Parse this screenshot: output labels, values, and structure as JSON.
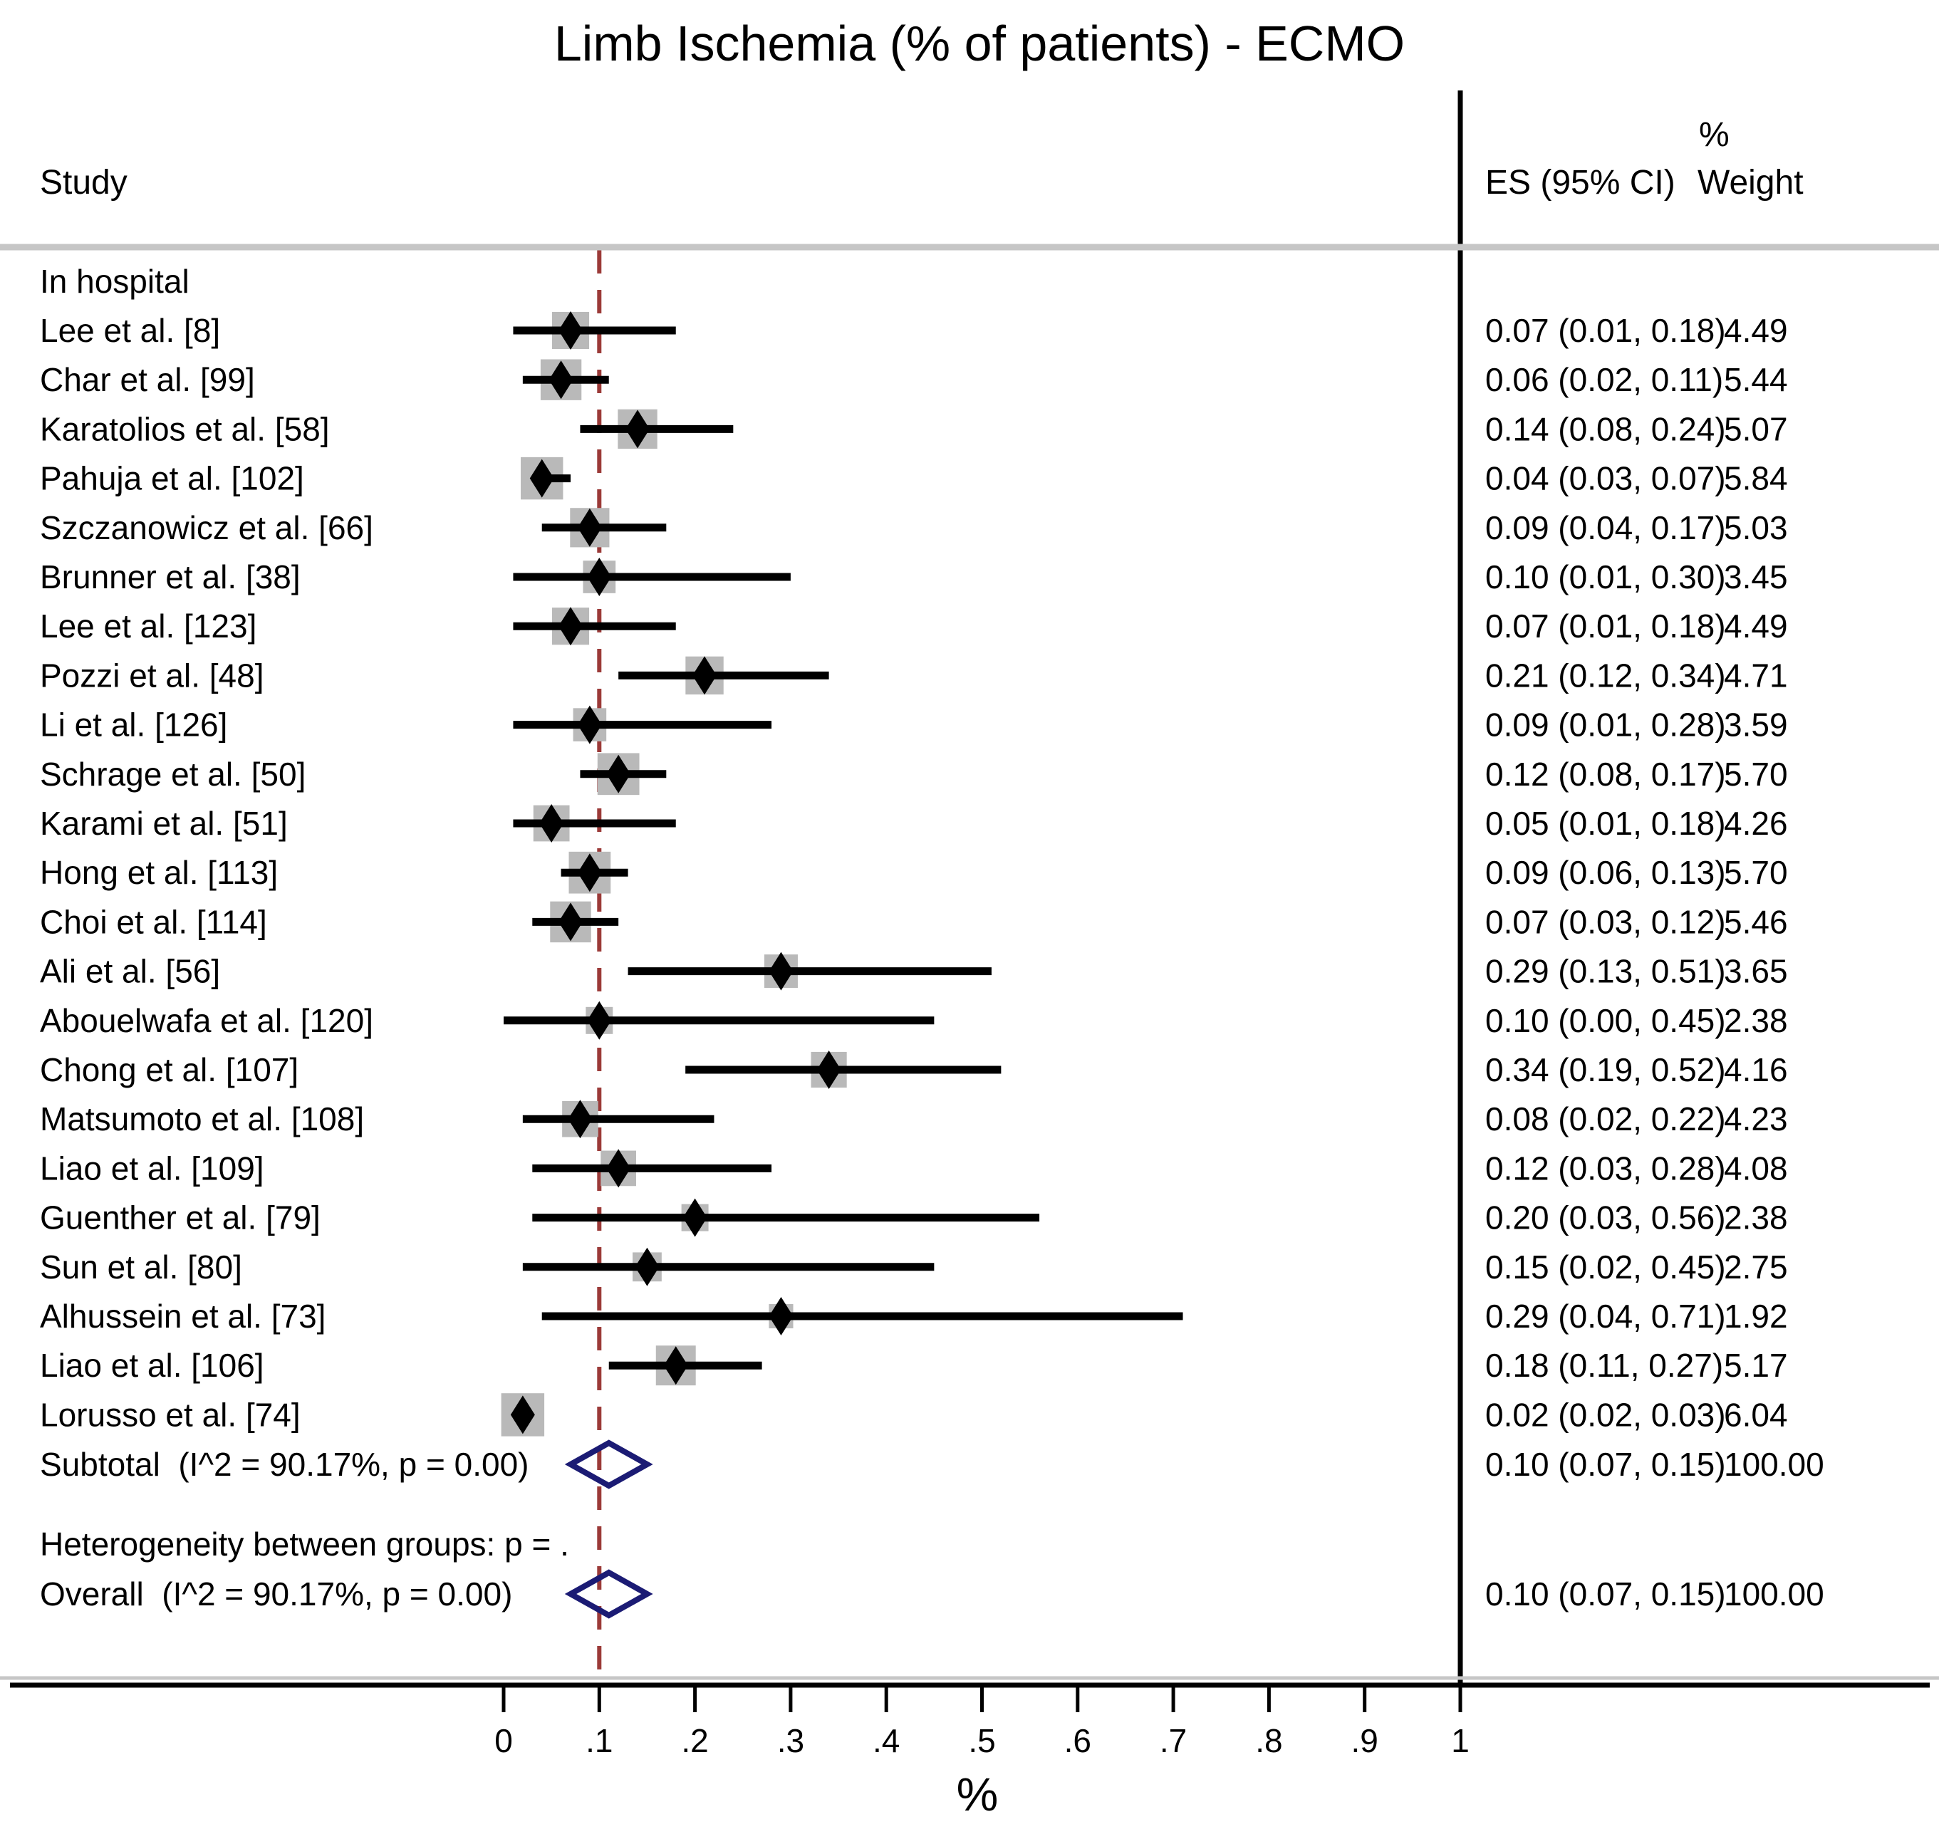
{
  "title": "Limb Ischemia (% of patients) - ECMO",
  "header": {
    "study": "Study",
    "es": "ES (95% CI)",
    "weight_top": "%",
    "weight": "Weight"
  },
  "axis": {
    "label": "%",
    "min": 0,
    "max": 1,
    "reference_value": 0.1,
    "ticks": [
      {
        "value": 0.0,
        "label": "0"
      },
      {
        "value": 0.1,
        "label": ".1"
      },
      {
        "value": 0.2,
        "label": ".2"
      },
      {
        "value": 0.3,
        "label": ".3"
      },
      {
        "value": 0.4,
        "label": ".4"
      },
      {
        "value": 0.5,
        "label": ".5"
      },
      {
        "value": 0.6,
        "label": ".6"
      },
      {
        "value": 0.7,
        "label": ".7"
      },
      {
        "value": 0.8,
        "label": ".8"
      },
      {
        "value": 0.9,
        "label": ".9"
      },
      {
        "value": 1.0,
        "label": "1"
      }
    ]
  },
  "colors": {
    "text": "#000000",
    "ci_line": "#000000",
    "point_marker": "#000000",
    "weight_square": "#b9b9b9",
    "summary_diamond": "#1b1b74",
    "reference_line": "#9b3a38",
    "separator": "#c6c6c6",
    "axis_line": "#000000"
  },
  "chart_data": {
    "type": "forest",
    "group_label": "In hospital",
    "studies": [
      {
        "label": "Lee et al. [8]",
        "es": 0.07,
        "ci_low": 0.01,
        "ci_high": 0.18,
        "weight": 4.49,
        "es_text": "0.07 (0.01, 0.18)",
        "weight_text": "4.49"
      },
      {
        "label": "Char et al. [99]",
        "es": 0.06,
        "ci_low": 0.02,
        "ci_high": 0.11,
        "weight": 5.44,
        "es_text": "0.06 (0.02, 0.11)",
        "weight_text": "5.44"
      },
      {
        "label": "Karatolios et al. [58]",
        "es": 0.14,
        "ci_low": 0.08,
        "ci_high": 0.24,
        "weight": 5.07,
        "es_text": "0.14 (0.08, 0.24)",
        "weight_text": "5.07"
      },
      {
        "label": "Pahuja et al. [102]",
        "es": 0.04,
        "ci_low": 0.03,
        "ci_high": 0.07,
        "weight": 5.84,
        "es_text": "0.04 (0.03, 0.07)",
        "weight_text": "5.84"
      },
      {
        "label": "Szczanowicz et al. [66]",
        "es": 0.09,
        "ci_low": 0.04,
        "ci_high": 0.17,
        "weight": 5.03,
        "es_text": "0.09 (0.04, 0.17)",
        "weight_text": "5.03"
      },
      {
        "label": "Brunner et al. [38]",
        "es": 0.1,
        "ci_low": 0.01,
        "ci_high": 0.3,
        "weight": 3.45,
        "es_text": "0.10 (0.01, 0.30)",
        "weight_text": "3.45"
      },
      {
        "label": "Lee et al. [123]",
        "es": 0.07,
        "ci_low": 0.01,
        "ci_high": 0.18,
        "weight": 4.49,
        "es_text": "0.07 (0.01, 0.18)",
        "weight_text": "4.49"
      },
      {
        "label": "Pozzi et al. [48]",
        "es": 0.21,
        "ci_low": 0.12,
        "ci_high": 0.34,
        "weight": 4.71,
        "es_text": "0.21 (0.12, 0.34)",
        "weight_text": "4.71"
      },
      {
        "label": "Li et al. [126]",
        "es": 0.09,
        "ci_low": 0.01,
        "ci_high": 0.28,
        "weight": 3.59,
        "es_text": "0.09 (0.01, 0.28)",
        "weight_text": "3.59"
      },
      {
        "label": "Schrage et al. [50]",
        "es": 0.12,
        "ci_low": 0.08,
        "ci_high": 0.17,
        "weight": 5.7,
        "es_text": "0.12 (0.08, 0.17)",
        "weight_text": "5.70"
      },
      {
        "label": "Karami et al. [51]",
        "es": 0.05,
        "ci_low": 0.01,
        "ci_high": 0.18,
        "weight": 4.26,
        "es_text": "0.05 (0.01, 0.18)",
        "weight_text": "4.26"
      },
      {
        "label": "Hong et al. [113]",
        "es": 0.09,
        "ci_low": 0.06,
        "ci_high": 0.13,
        "weight": 5.7,
        "es_text": "0.09 (0.06, 0.13)",
        "weight_text": "5.70"
      },
      {
        "label": "Choi et al. [114]",
        "es": 0.07,
        "ci_low": 0.03,
        "ci_high": 0.12,
        "weight": 5.46,
        "es_text": "0.07 (0.03, 0.12)",
        "weight_text": "5.46"
      },
      {
        "label": "Ali et al. [56]",
        "es": 0.29,
        "ci_low": 0.13,
        "ci_high": 0.51,
        "weight": 3.65,
        "es_text": "0.29 (0.13, 0.51)",
        "weight_text": "3.65"
      },
      {
        "label": "Abouelwafa et al. [120]",
        "es": 0.1,
        "ci_low": 0.0,
        "ci_high": 0.45,
        "weight": 2.38,
        "es_text": "0.10 (0.00, 0.45)",
        "weight_text": "2.38"
      },
      {
        "label": "Chong et al. [107]",
        "es": 0.34,
        "ci_low": 0.19,
        "ci_high": 0.52,
        "weight": 4.16,
        "es_text": "0.34 (0.19, 0.52)",
        "weight_text": "4.16"
      },
      {
        "label": "Matsumoto et al. [108]",
        "es": 0.08,
        "ci_low": 0.02,
        "ci_high": 0.22,
        "weight": 4.23,
        "es_text": "0.08 (0.02, 0.22)",
        "weight_text": "4.23"
      },
      {
        "label": "Liao et al. [109]",
        "es": 0.12,
        "ci_low": 0.03,
        "ci_high": 0.28,
        "weight": 4.08,
        "es_text": "0.12 (0.03, 0.28)",
        "weight_text": "4.08"
      },
      {
        "label": "Guenther et al. [79]",
        "es": 0.2,
        "ci_low": 0.03,
        "ci_high": 0.56,
        "weight": 2.38,
        "es_text": "0.20 (0.03, 0.56)",
        "weight_text": "2.38"
      },
      {
        "label": "Sun et al. [80]",
        "es": 0.15,
        "ci_low": 0.02,
        "ci_high": 0.45,
        "weight": 2.75,
        "es_text": "0.15 (0.02, 0.45)",
        "weight_text": "2.75"
      },
      {
        "label": "Alhussein et al. [73]",
        "es": 0.29,
        "ci_low": 0.04,
        "ci_high": 0.71,
        "weight": 1.92,
        "es_text": "0.29 (0.04, 0.71)",
        "weight_text": "1.92"
      },
      {
        "label": "Liao et al. [106]",
        "es": 0.18,
        "ci_low": 0.11,
        "ci_high": 0.27,
        "weight": 5.17,
        "es_text": "0.18 (0.11, 0.27)",
        "weight_text": "5.17"
      },
      {
        "label": "Lorusso et al. [74]",
        "es": 0.02,
        "ci_low": 0.02,
        "ci_high": 0.03,
        "weight": 6.04,
        "es_text": "0.02 (0.02, 0.03)",
        "weight_text": "6.04"
      }
    ],
    "subtotal": {
      "label": "Subtotal  (I^2 = 90.17%, p = 0.00)",
      "es": 0.1,
      "ci_low": 0.07,
      "ci_high": 0.15,
      "es_text": "0.10 (0.07, 0.15)",
      "weight_text": "100.00"
    },
    "heterogeneity_note": "Heterogeneity between groups: p = .",
    "overall": {
      "label": "Overall  (I^2 = 90.17%, p = 0.00)",
      "es": 0.1,
      "ci_low": 0.07,
      "ci_high": 0.15,
      "es_text": "0.10 (0.07, 0.15)",
      "weight_text": "100.00"
    }
  }
}
